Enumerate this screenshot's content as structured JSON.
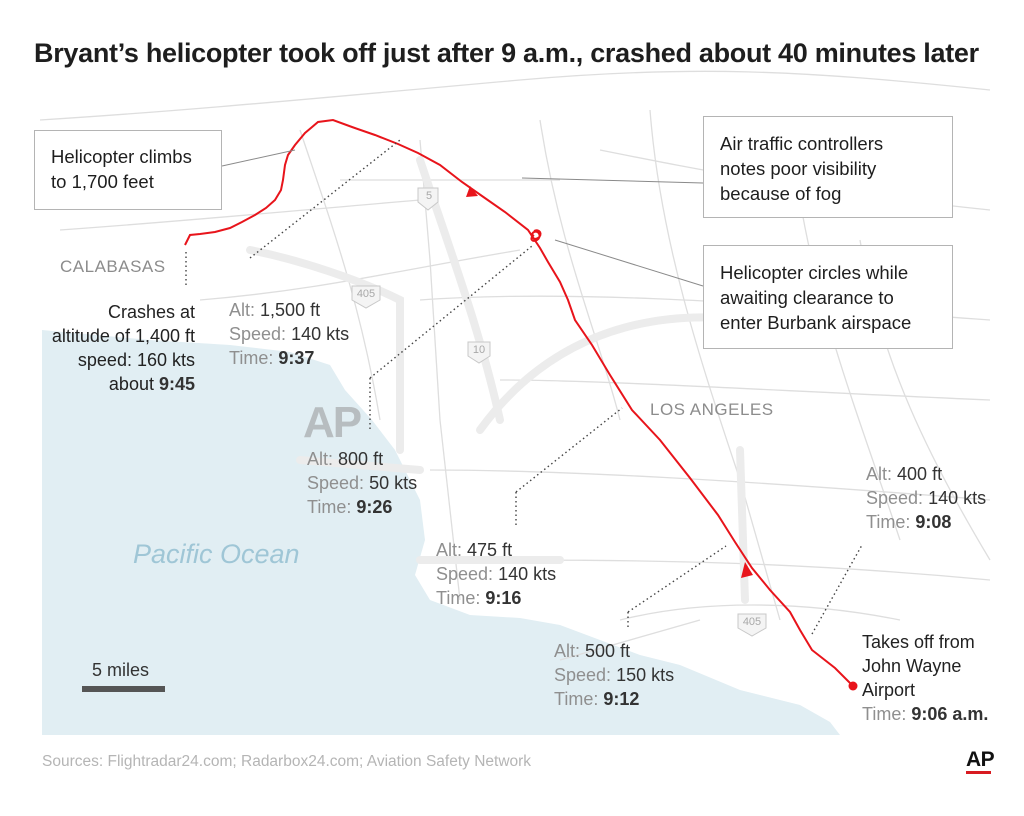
{
  "title": "Bryant’s helicopter took off just after 9 a.m., crashed about 40 minutes later",
  "callouts": {
    "climb": [
      "Helicopter climbs",
      "to 1,700 feet"
    ],
    "fog": [
      "Air traffic controllers",
      "notes poor visibility",
      "because of fog"
    ],
    "circles": [
      "Helicopter circles while",
      "awaiting clearance to",
      "enter Burbank airspace"
    ]
  },
  "places": {
    "calabasas": "CALABASAS",
    "los_angeles": "LOS ANGELES",
    "ocean": "Pacific Ocean"
  },
  "highway_shields": [
    "5",
    "405",
    "10",
    "405"
  ],
  "watermark": "AP",
  "crash": {
    "lines": [
      "Crashes at",
      "altitude of 1,400 ft",
      "speed: 160 kts"
    ],
    "time_prefix": "about ",
    "time": "9:45"
  },
  "takeoff": {
    "lines": [
      "Takes off from",
      "John Wayne",
      "Airport"
    ],
    "time_label": "Time:",
    "time": "9:06 a.m."
  },
  "waypoints": {
    "p937": {
      "alt_label": "Alt:",
      "alt": "1,500 ft",
      "speed_label": "Speed:",
      "speed": "140 kts",
      "time_label": "Time:",
      "time": "9:37"
    },
    "p926": {
      "alt_label": "Alt:",
      "alt": "800 ft",
      "speed_label": "Speed:",
      "speed": "50 kts",
      "time_label": "Time:",
      "time": "9:26"
    },
    "p916": {
      "alt_label": "Alt:",
      "alt": "475 ft",
      "speed_label": "Speed:",
      "speed": "140 kts",
      "time_label": "Time:",
      "time": "9:16"
    },
    "p912": {
      "alt_label": "Alt:",
      "alt": "500 ft",
      "speed_label": "Speed:",
      "speed": "150 kts",
      "time_label": "Time:",
      "time": "9:12"
    },
    "p908": {
      "alt_label": "Alt:",
      "alt": "400 ft",
      "speed_label": "Speed:",
      "speed": "140 kts",
      "time_label": "Time:",
      "time": "9:08"
    }
  },
  "scale": "5 miles",
  "sources": "Sources: Flightradar24.com; Radarbox24.com; Aviation Safety Network",
  "logo": "AP",
  "colors": {
    "flight_path": "#e8141b",
    "ocean": "#e1eef3",
    "land": "#ffffff",
    "roads": "#dcdcdc"
  }
}
